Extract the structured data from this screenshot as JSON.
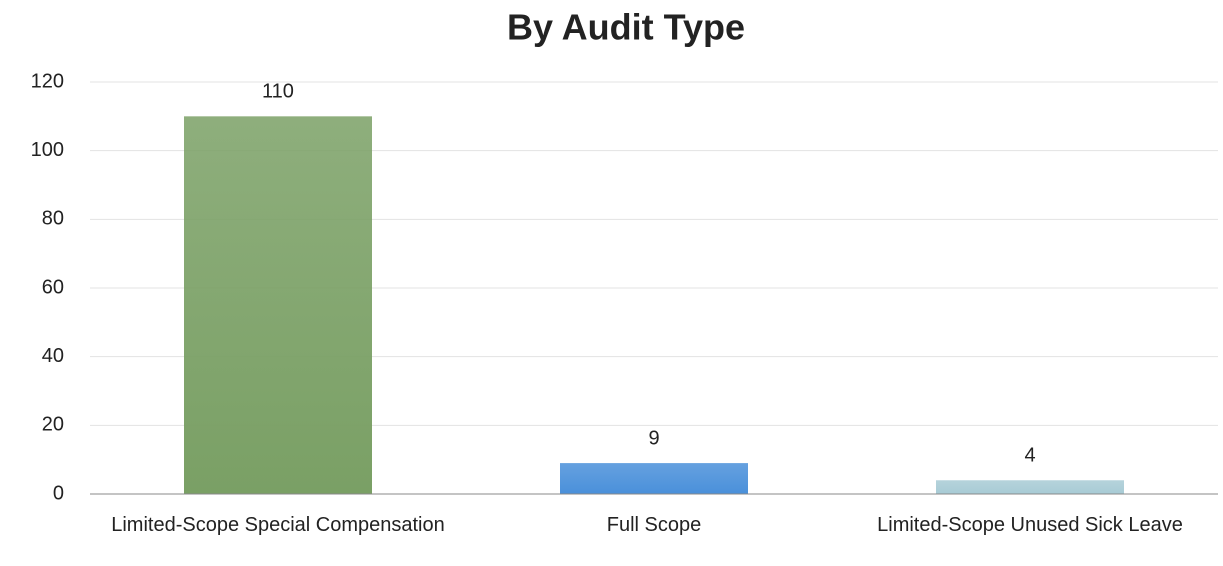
{
  "chart_data": {
    "type": "bar",
    "title": "By Audit Type",
    "categories": [
      "Limited-Scope Special Compensation",
      "Full Scope",
      "Limited-Scope Unused Sick Leave"
    ],
    "values": [
      110,
      9,
      4
    ],
    "colors": [
      "#7aa065",
      "#4a90da",
      "#a8cbd5"
    ],
    "ylim": [
      0,
      120
    ],
    "yticks": [
      0,
      20,
      40,
      60,
      80,
      100,
      120
    ],
    "grid": true
  }
}
